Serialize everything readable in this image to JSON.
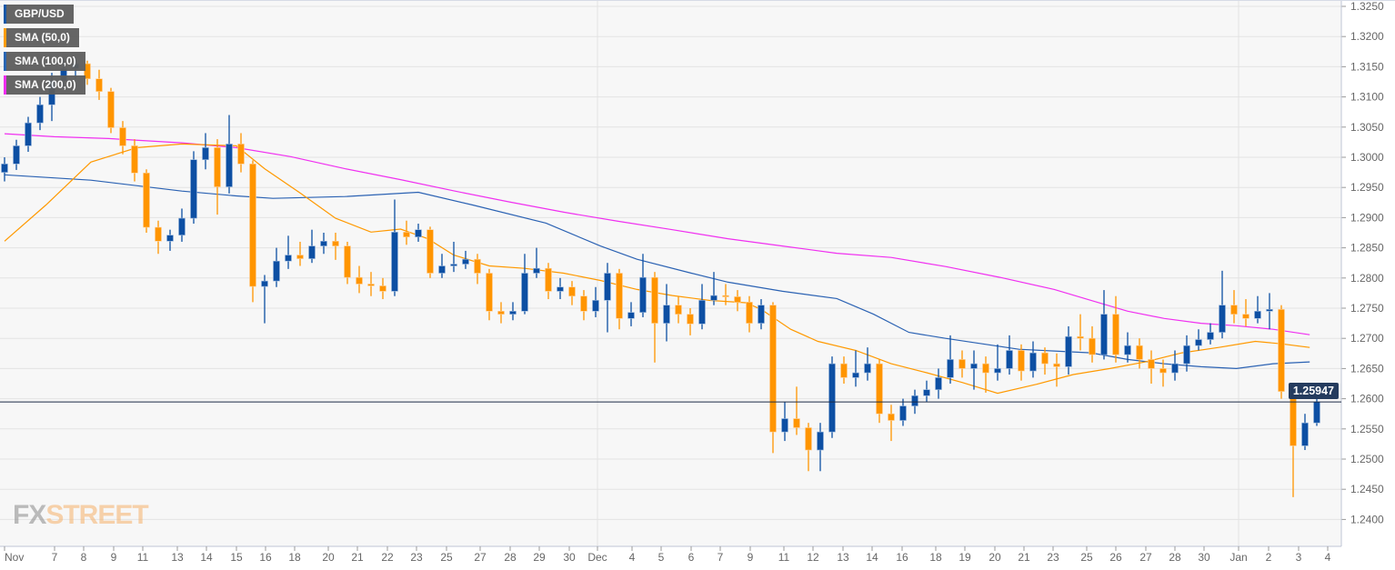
{
  "chart_data": {
    "type": "candlestick",
    "symbol": "GBP/USD",
    "last_price": "1.25947",
    "ylim": [
      1.235,
      1.326
    ],
    "y_ticks": [
      "1.3250",
      "1.3200",
      "1.3150",
      "1.3100",
      "1.3050",
      "1.3000",
      "1.2950",
      "1.2900",
      "1.2850",
      "1.2800",
      "1.2750",
      "1.2700",
      "1.2650",
      "1.2600",
      "1.2550",
      "1.2500",
      "1.2450",
      "1.2400"
    ],
    "x_tick_labels": [
      "Nov",
      "7",
      "8",
      "9",
      "11",
      "13",
      "14",
      "15",
      "16",
      "18",
      "20",
      "21",
      "22",
      "23",
      "25",
      "27",
      "28",
      "29",
      "30",
      "Dec",
      "4",
      "5",
      "6",
      "7",
      "9",
      "11",
      "12",
      "13",
      "14",
      "16",
      "18",
      "19",
      "20",
      "21",
      "23",
      "25",
      "26",
      "27",
      "28",
      "30",
      "Jan",
      "2",
      "3",
      "4"
    ],
    "legend": [
      {
        "label": "GBP/USD",
        "color": "#0d4fa3"
      },
      {
        "label": "SMA (50,0)",
        "color": "#ff9900"
      },
      {
        "label": "SMA (100,0)",
        "color": "#1f5fb0"
      },
      {
        "label": "SMA (200,0)",
        "color": "#ee22ee"
      }
    ],
    "colors": {
      "up": "#0d4fa3",
      "down": "#ff9500",
      "sma50": "#ff9900",
      "sma100": "#2b62b3",
      "sma200": "#f030f0"
    },
    "candles": [
      [
        1.2975,
        1.3,
        1.296,
        1.2989
      ],
      [
        1.2989,
        1.3029,
        1.2979,
        1.3019
      ],
      [
        1.3019,
        1.3067,
        1.3009,
        1.3057
      ],
      [
        1.3057,
        1.31,
        1.3045,
        1.3087
      ],
      [
        1.3087,
        1.314,
        1.306,
        1.3127
      ],
      [
        1.3127,
        1.3165,
        1.3115,
        1.3147
      ],
      [
        1.3147,
        1.3165,
        1.313,
        1.3155
      ],
      [
        1.3155,
        1.316,
        1.312,
        1.313
      ],
      [
        1.313,
        1.3145,
        1.3095,
        1.3109
      ],
      [
        1.3109,
        1.3115,
        1.304,
        1.3049
      ],
      [
        1.3049,
        1.306,
        1.3005,
        1.3019
      ],
      [
        1.3019,
        1.303,
        1.296,
        1.2974
      ],
      [
        1.2974,
        1.298,
        1.2875,
        1.2884
      ],
      [
        1.2884,
        1.2895,
        1.284,
        1.2861
      ],
      [
        1.2861,
        1.288,
        1.2845,
        1.2871
      ],
      [
        1.2871,
        1.2915,
        1.286,
        1.2899
      ],
      [
        1.2899,
        1.301,
        1.289,
        1.2996
      ],
      [
        1.2996,
        1.304,
        1.298,
        1.3016
      ],
      [
        1.3016,
        1.303,
        1.2905,
        1.2951
      ],
      [
        1.2951,
        1.307,
        1.294,
        1.3022
      ],
      [
        1.3022,
        1.304,
        1.2975,
        1.2989
      ],
      [
        1.2989,
        1.2995,
        1.276,
        1.2786
      ],
      [
        1.2786,
        1.2805,
        1.2725,
        1.2795
      ],
      [
        1.2795,
        1.285,
        1.2785,
        1.2828
      ],
      [
        1.2828,
        1.287,
        1.2815,
        1.2838
      ],
      [
        1.2838,
        1.286,
        1.282,
        1.2832
      ],
      [
        1.2832,
        1.288,
        1.2825,
        1.2853
      ],
      [
        1.2853,
        1.2875,
        1.284,
        1.2861
      ],
      [
        1.2861,
        1.2875,
        1.283,
        1.2853
      ],
      [
        1.2853,
        1.286,
        1.279,
        1.2801
      ],
      [
        1.2801,
        1.282,
        1.2775,
        1.279
      ],
      [
        1.279,
        1.281,
        1.277,
        1.2787
      ],
      [
        1.2787,
        1.28,
        1.2765,
        1.2778
      ],
      [
        1.2778,
        1.293,
        1.277,
        1.2876
      ],
      [
        1.2876,
        1.2895,
        1.2855,
        1.2868
      ],
      [
        1.2868,
        1.289,
        1.286,
        1.288
      ],
      [
        1.288,
        1.2885,
        1.28,
        1.2808
      ],
      [
        1.2808,
        1.284,
        1.28,
        1.282
      ],
      [
        1.282,
        1.286,
        1.281,
        1.2823
      ],
      [
        1.2823,
        1.2845,
        1.2815,
        1.2831
      ],
      [
        1.2831,
        1.284,
        1.279,
        1.2808
      ],
      [
        1.2808,
        1.2815,
        1.273,
        1.2745
      ],
      [
        1.2745,
        1.276,
        1.2725,
        1.274
      ],
      [
        1.274,
        1.276,
        1.273,
        1.2745
      ],
      [
        1.2745,
        1.284,
        1.274,
        1.2808
      ],
      [
        1.2808,
        1.285,
        1.28,
        1.2816
      ],
      [
        1.2816,
        1.2825,
        1.2765,
        1.2778
      ],
      [
        1.2778,
        1.28,
        1.2765,
        1.2785
      ],
      [
        1.2785,
        1.2795,
        1.2755,
        1.277
      ],
      [
        1.277,
        1.278,
        1.273,
        1.2745
      ],
      [
        1.2745,
        1.2785,
        1.2735,
        1.2763
      ],
      [
        1.2763,
        1.2825,
        1.271,
        1.2808
      ],
      [
        1.2808,
        1.2815,
        1.2715,
        1.2733
      ],
      [
        1.2733,
        1.276,
        1.272,
        1.2743
      ],
      [
        1.2743,
        1.284,
        1.2735,
        1.2801
      ],
      [
        1.2801,
        1.281,
        1.266,
        1.2725
      ],
      [
        1.2725,
        1.279,
        1.2695,
        1.2755
      ],
      [
        1.2755,
        1.277,
        1.2725,
        1.274
      ],
      [
        1.274,
        1.275,
        1.2705,
        1.2724
      ],
      [
        1.2724,
        1.279,
        1.2715,
        1.2763
      ],
      [
        1.2763,
        1.281,
        1.2755,
        1.2771
      ],
      [
        1.2771,
        1.279,
        1.2755,
        1.2769
      ],
      [
        1.2769,
        1.278,
        1.2745,
        1.276
      ],
      [
        1.276,
        1.277,
        1.271,
        1.2725
      ],
      [
        1.2725,
        1.2765,
        1.2715,
        1.2755
      ],
      [
        1.2755,
        1.276,
        1.251,
        1.2545
      ],
      [
        1.2545,
        1.2595,
        1.253,
        1.2567
      ],
      [
        1.2567,
        1.262,
        1.254,
        1.2552
      ],
      [
        1.2552,
        1.256,
        1.248,
        1.2515
      ],
      [
        1.2515,
        1.256,
        1.248,
        1.2545
      ],
      [
        1.2545,
        1.267,
        1.2535,
        1.2658
      ],
      [
        1.2658,
        1.267,
        1.2625,
        1.2635
      ],
      [
        1.2635,
        1.268,
        1.262,
        1.2643
      ],
      [
        1.2643,
        1.2685,
        1.263,
        1.2658
      ],
      [
        1.2658,
        1.2665,
        1.256,
        1.2575
      ],
      [
        1.2575,
        1.259,
        1.253,
        1.2564
      ],
      [
        1.2564,
        1.26,
        1.2555,
        1.2588
      ],
      [
        1.2588,
        1.2615,
        1.2575,
        1.2605
      ],
      [
        1.2605,
        1.263,
        1.2595,
        1.2615
      ],
      [
        1.2615,
        1.265,
        1.26,
        1.2635
      ],
      [
        1.2635,
        1.2705,
        1.2625,
        1.2665
      ],
      [
        1.2665,
        1.268,
        1.2635,
        1.265
      ],
      [
        1.265,
        1.268,
        1.2615,
        1.2658
      ],
      [
        1.2658,
        1.267,
        1.261,
        1.2643
      ],
      [
        1.2643,
        1.269,
        1.263,
        1.265
      ],
      [
        1.265,
        1.2705,
        1.264,
        1.268
      ],
      [
        1.268,
        1.269,
        1.263,
        1.2646
      ],
      [
        1.2646,
        1.2695,
        1.2635,
        1.2676
      ],
      [
        1.2676,
        1.2685,
        1.264,
        1.2658
      ],
      [
        1.2658,
        1.2675,
        1.262,
        1.2653
      ],
      [
        1.2653,
        1.272,
        1.264,
        1.2703
      ],
      [
        1.2703,
        1.274,
        1.268,
        1.27
      ],
      [
        1.27,
        1.272,
        1.266,
        1.2673
      ],
      [
        1.2673,
        1.278,
        1.2665,
        1.274
      ],
      [
        1.274,
        1.277,
        1.266,
        1.2673
      ],
      [
        1.2673,
        1.271,
        1.266,
        1.2688
      ],
      [
        1.2688,
        1.27,
        1.265,
        1.2665
      ],
      [
        1.2665,
        1.268,
        1.2625,
        1.265
      ],
      [
        1.265,
        1.2665,
        1.262,
        1.2643
      ],
      [
        1.2643,
        1.268,
        1.263,
        1.2658
      ],
      [
        1.2658,
        1.2705,
        1.2645,
        1.2688
      ],
      [
        1.2688,
        1.2715,
        1.268,
        1.2698
      ],
      [
        1.2698,
        1.2725,
        1.269,
        1.271
      ],
      [
        1.271,
        1.2812,
        1.27,
        1.2755
      ],
      [
        1.2755,
        1.278,
        1.2725,
        1.274
      ],
      [
        1.274,
        1.2765,
        1.272,
        1.2733
      ],
      [
        1.2733,
        1.277,
        1.2725,
        1.2745
      ],
      [
        1.2745,
        1.2775,
        1.2715,
        1.2748
      ],
      [
        1.2748,
        1.2755,
        1.26,
        1.2612
      ],
      [
        1.2612,
        1.2618,
        1.2437,
        1.2522
      ],
      [
        1.2522,
        1.2575,
        1.2515,
        1.256
      ],
      [
        1.256,
        1.261,
        1.2555,
        1.25947
      ]
    ],
    "sma50": [
      [
        0,
        1.2861
      ],
      [
        3.5,
        1.2921
      ],
      [
        7.3,
        1.2992
      ],
      [
        11.2,
        1.3016
      ],
      [
        15,
        1.3022
      ],
      [
        19.6,
        1.3019
      ],
      [
        22,
        1.2981
      ],
      [
        25,
        1.2941
      ],
      [
        28,
        1.2899
      ],
      [
        31,
        1.2876
      ],
      [
        33.5,
        1.2881
      ],
      [
        35.8,
        1.2865
      ],
      [
        38,
        1.2838
      ],
      [
        41,
        1.282
      ],
      [
        44,
        1.2816
      ],
      [
        47.3,
        1.2808
      ],
      [
        50.4,
        1.2796
      ],
      [
        53.5,
        1.2781
      ],
      [
        56.5,
        1.2771
      ],
      [
        59.6,
        1.2763
      ],
      [
        62.7,
        1.2759
      ],
      [
        64,
        1.2748
      ],
      [
        66.5,
        1.2715
      ],
      [
        68.8,
        1.2695
      ],
      [
        72,
        1.268
      ],
      [
        75,
        1.2658
      ],
      [
        78,
        1.2643
      ],
      [
        81,
        1.2627
      ],
      [
        84,
        1.2609
      ],
      [
        87.3,
        1.2624
      ],
      [
        90.4,
        1.264
      ],
      [
        93.5,
        1.265
      ],
      [
        96.5,
        1.2661
      ],
      [
        99.6,
        1.2676
      ],
      [
        102.7,
        1.2685
      ],
      [
        105.8,
        1.2695
      ],
      [
        108,
        1.2691
      ],
      [
        110.4,
        1.2685
      ]
    ],
    "sma100": [
      [
        0,
        1.2971
      ],
      [
        7.3,
        1.2962
      ],
      [
        15,
        1.2944
      ],
      [
        19.6,
        1.2936
      ],
      [
        22.7,
        1.2932
      ],
      [
        28.8,
        1.2935
      ],
      [
        35,
        1.2942
      ],
      [
        39.6,
        1.2921
      ],
      [
        45.8,
        1.2891
      ],
      [
        50.4,
        1.2853
      ],
      [
        53.5,
        1.2831
      ],
      [
        58.1,
        1.2808
      ],
      [
        61.2,
        1.2793
      ],
      [
        65.8,
        1.2778
      ],
      [
        70.4,
        1.2766
      ],
      [
        73.5,
        1.274
      ],
      [
        76.5,
        1.271
      ],
      [
        79.6,
        1.27
      ],
      [
        82.7,
        1.2691
      ],
      [
        85.8,
        1.2682
      ],
      [
        88.8,
        1.2679
      ],
      [
        91.9,
        1.2676
      ],
      [
        95,
        1.2665
      ],
      [
        98.1,
        1.2658
      ],
      [
        101.2,
        1.2653
      ],
      [
        104.2,
        1.265
      ],
      [
        107.3,
        1.2658
      ],
      [
        110.4,
        1.2661
      ]
    ],
    "sma200": [
      [
        0,
        1.3039
      ],
      [
        4.2,
        1.3034
      ],
      [
        8.8,
        1.3031
      ],
      [
        15,
        1.3024
      ],
      [
        19.6,
        1.3016
      ],
      [
        24.2,
        1.3001
      ],
      [
        28.8,
        1.2981
      ],
      [
        33.5,
        1.2963
      ],
      [
        38.1,
        1.2944
      ],
      [
        42.7,
        1.2926
      ],
      [
        47.3,
        1.2909
      ],
      [
        51.9,
        1.2894
      ],
      [
        56.5,
        1.288
      ],
      [
        61.2,
        1.2865
      ],
      [
        65.8,
        1.2853
      ],
      [
        70.4,
        1.2841
      ],
      [
        75,
        1.2834
      ],
      [
        79.6,
        1.2819
      ],
      [
        84.2,
        1.2801
      ],
      [
        88.8,
        1.2781
      ],
      [
        91.9,
        1.2763
      ],
      [
        95,
        1.2745
      ],
      [
        98.1,
        1.2733
      ],
      [
        101.2,
        1.2725
      ],
      [
        104.2,
        1.2721
      ],
      [
        107.3,
        1.2715
      ],
      [
        110.4,
        1.2706
      ]
    ]
  },
  "logo": {
    "fx": "FX",
    "street": "STREET"
  }
}
